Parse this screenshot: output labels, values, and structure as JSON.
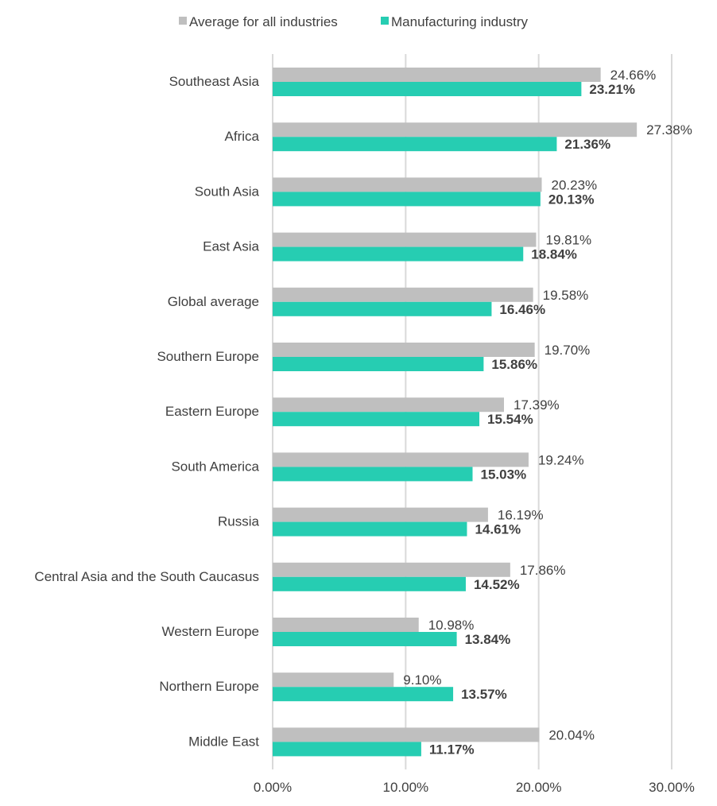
{
  "chart_data": {
    "type": "bar",
    "orientation": "horizontal",
    "categories": [
      "Southeast Asia",
      "Africa",
      "South Asia",
      "East Asia",
      "Global average",
      "Southern Europe",
      "Eastern Europe",
      "South America",
      "Russia",
      "Central Asia and the South Caucasus",
      "Western Europe",
      "Northern Europe",
      "Middle East"
    ],
    "series": [
      {
        "name": "Average for all industries",
        "color": "#bfbfbf",
        "values": [
          24.66,
          27.38,
          20.23,
          19.81,
          19.58,
          19.7,
          17.39,
          19.24,
          16.19,
          17.86,
          10.98,
          9.1,
          20.04
        ],
        "labels": [
          "24.66%",
          "27.38%",
          "20.23%",
          "19.81%",
          "19.58%",
          "19.70%",
          "17.39%",
          "19.24%",
          "16.19%",
          "17.86%",
          "10.98%",
          "9.10%",
          "20.04%"
        ]
      },
      {
        "name": "Manufacturing industry",
        "color": "#26cdb2",
        "values": [
          23.21,
          21.36,
          20.13,
          18.84,
          16.46,
          15.86,
          15.54,
          15.03,
          14.61,
          14.52,
          13.84,
          13.57,
          11.17
        ],
        "labels": [
          "23.21%",
          "21.36%",
          "20.13%",
          "18.84%",
          "16.46%",
          "15.86%",
          "15.54%",
          "15.03%",
          "14.61%",
          "14.52%",
          "13.84%",
          "13.57%",
          "11.17%"
        ]
      }
    ],
    "xlim": [
      0,
      30
    ],
    "xticks": [
      0,
      10,
      20,
      30
    ],
    "xtick_labels": [
      "0.00%",
      "10.00%",
      "20.00%",
      "30.00%"
    ],
    "grid": "vertical",
    "legend": "top",
    "title": "",
    "xlabel": "",
    "ylabel": ""
  }
}
